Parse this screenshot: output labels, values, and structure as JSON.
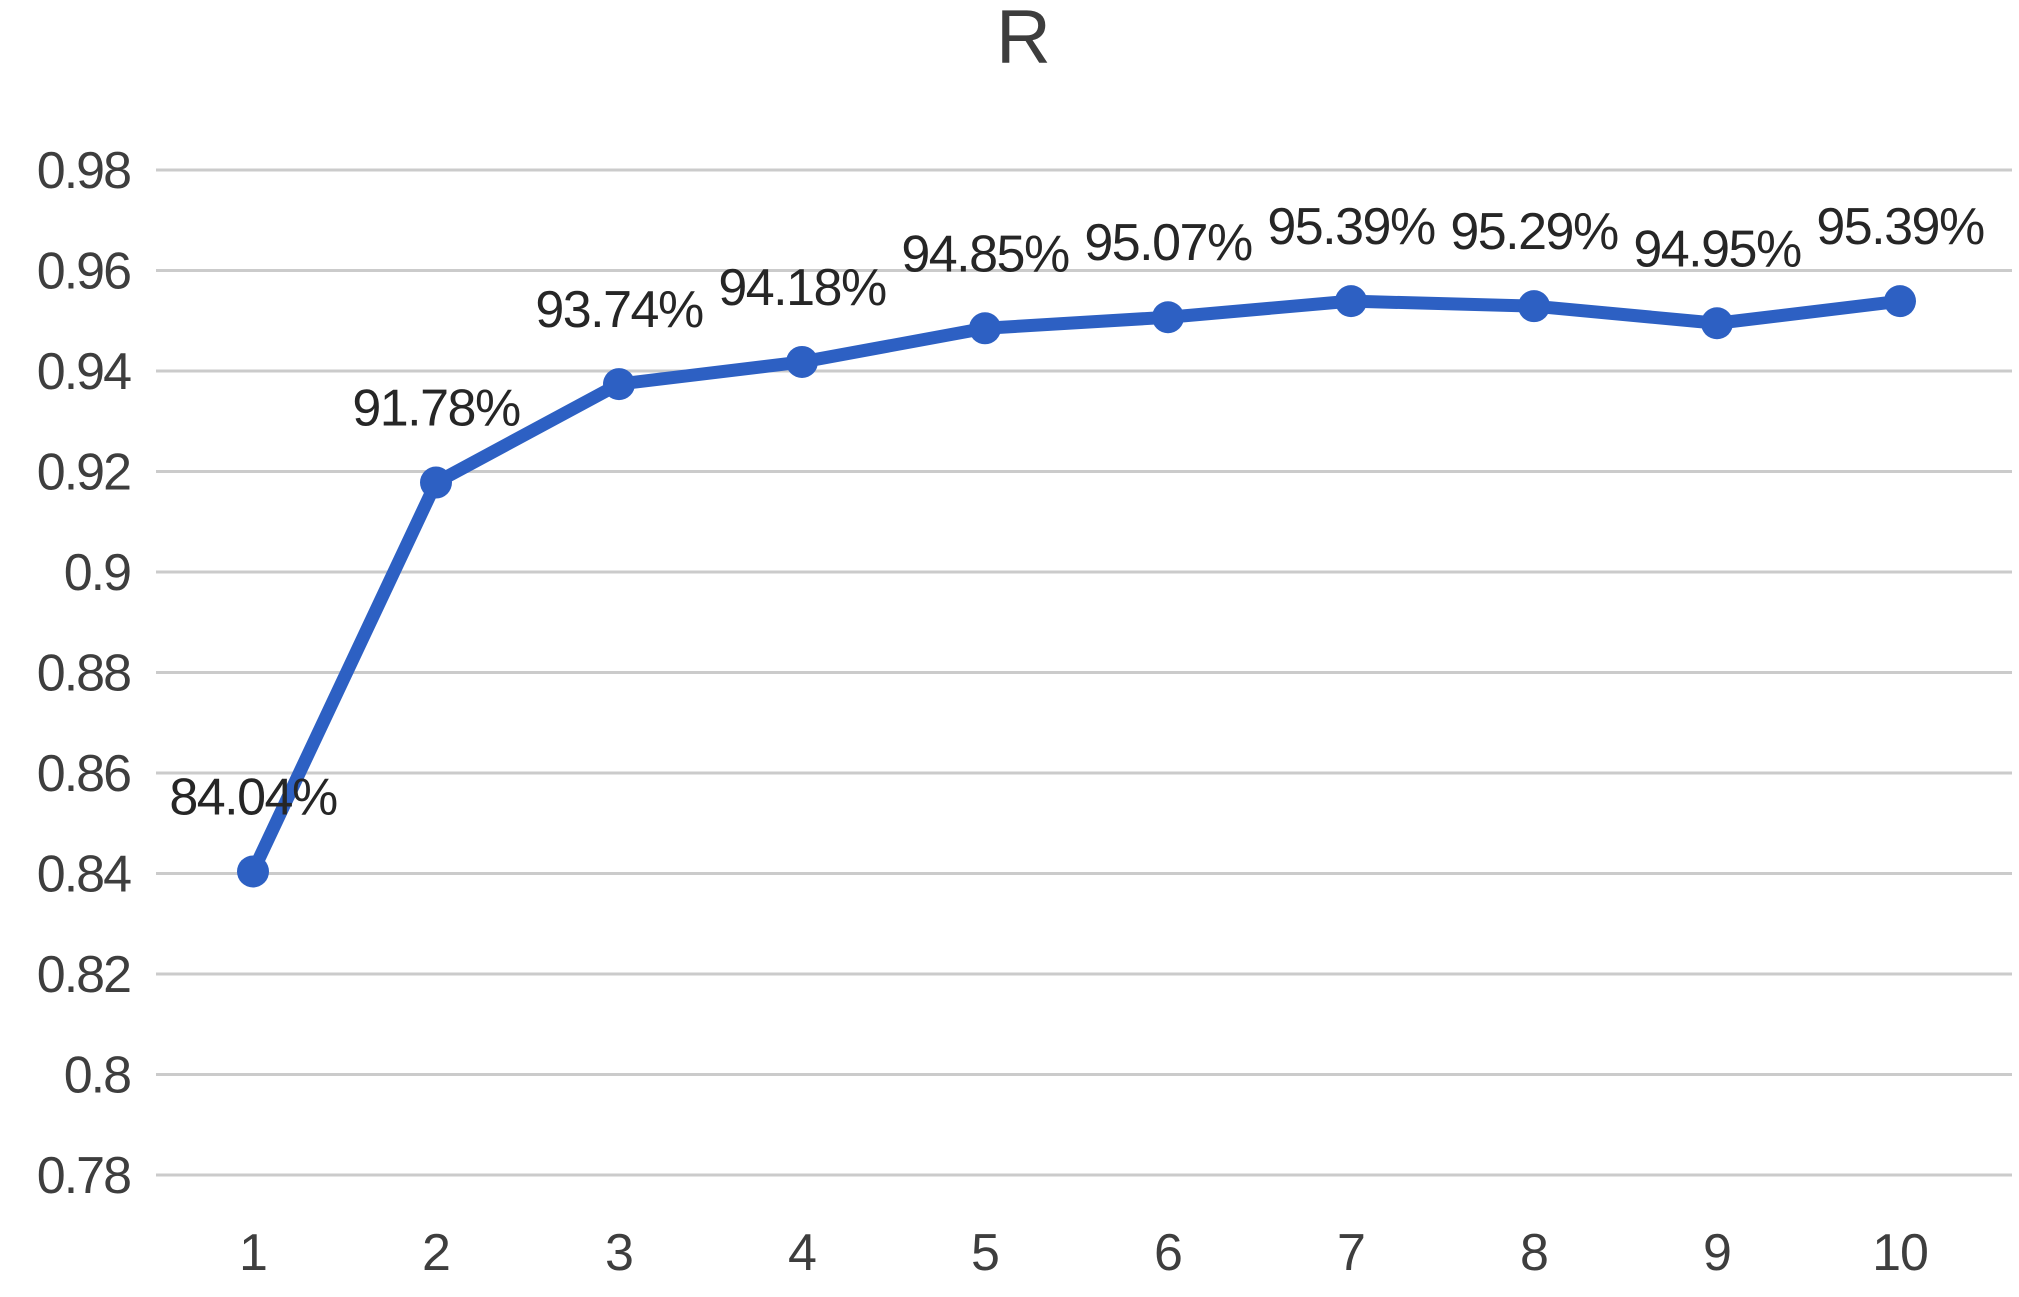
{
  "chart_data": {
    "type": "line",
    "title": "R",
    "x": [
      1,
      2,
      3,
      4,
      5,
      6,
      7,
      8,
      9,
      10
    ],
    "series": [
      {
        "name": "R",
        "values": [
          0.8404,
          0.9178,
          0.9374,
          0.9418,
          0.9485,
          0.9507,
          0.9539,
          0.9529,
          0.9495,
          0.9539
        ],
        "point_labels": [
          "84.04%",
          "91.78%",
          "93.74%",
          "94.18%",
          "94.85%",
          "95.07%",
          "95.39%",
          "95.29%",
          "94.95%",
          "95.39%"
        ]
      }
    ],
    "xlabel": "",
    "ylabel": "",
    "ylim": [
      0.78,
      0.98
    ],
    "y_tick_values": [
      0.98,
      0.96,
      0.94,
      0.92,
      0.9,
      0.88,
      0.86,
      0.84,
      0.82,
      0.8,
      0.78
    ],
    "y_tick_labels": [
      "0.98",
      "0.96",
      "0.94",
      "0.92",
      "0.9",
      "0.88",
      "0.86",
      "0.84",
      "0.82",
      "0.8",
      "0.78"
    ],
    "x_tick_labels": [
      "1",
      "2",
      "3",
      "4",
      "5",
      "6",
      "7",
      "8",
      "9",
      "10"
    ],
    "grid": "horizontal-only",
    "legend": "none",
    "marker": "circle",
    "colors": {
      "line": "#2d60c3",
      "marker": "#2d60c3",
      "gridline": "#cbcbcb",
      "tick_text": "#3e3e3e",
      "point_label_text": "#262626",
      "title_text": "#3d3d3d",
      "background": "#ffffff"
    }
  }
}
